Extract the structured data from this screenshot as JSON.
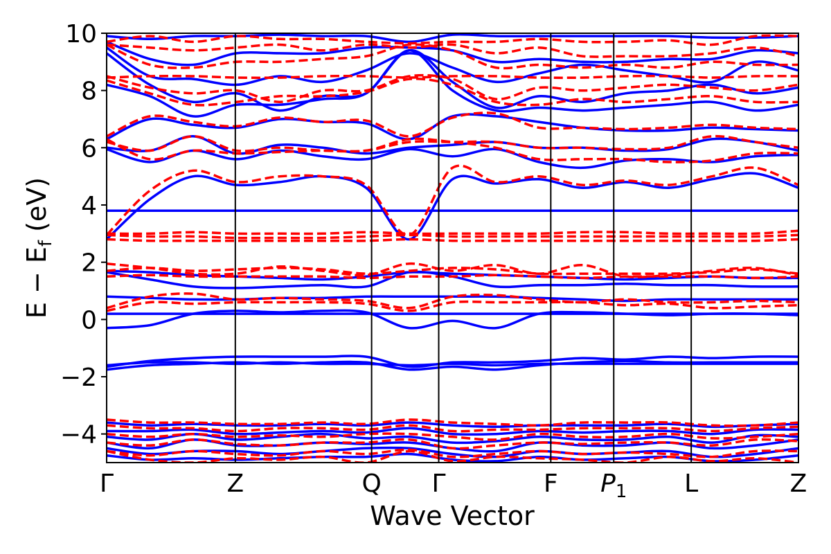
{
  "chart_data": {
    "type": "line",
    "xlabel": "Wave Vector",
    "ylabel": "E − E",
    "ylabel_sub": "f",
    "ylabel_unit": " (eV)",
    "ylim": [
      -5,
      10
    ],
    "yticks": [
      {
        "value": 10,
        "label": "10"
      },
      {
        "value": 8,
        "label": "8"
      },
      {
        "value": 6,
        "label": "6"
      },
      {
        "value": 4,
        "label": "4"
      },
      {
        "value": 2,
        "label": "2"
      },
      {
        "value": 0,
        "label": "0"
      },
      {
        "value": -2,
        "label": "−2"
      },
      {
        "value": -4,
        "label": "−4"
      }
    ],
    "kpoints": [
      {
        "label": "Γ",
        "sub": "",
        "pos": 0.0
      },
      {
        "label": "Z",
        "sub": "",
        "pos": 1.86
      },
      {
        "label": "Q",
        "sub": "",
        "pos": 3.83
      },
      {
        "label": "Γ",
        "sub": "",
        "pos": 4.8
      },
      {
        "label": "F",
        "sub": "",
        "pos": 6.42
      },
      {
        "label": "P",
        "sub": "1",
        "pos": 7.33
      },
      {
        "label": "L",
        "sub": "",
        "pos": 8.45
      },
      {
        "label": "Z",
        "sub": "",
        "pos": 10.0
      }
    ],
    "xlim": [
      0,
      10.0
    ],
    "colors": {
      "solid": "#0000ff",
      "dashed": "#ff0000"
    },
    "series": [
      {
        "style": "solid",
        "values": [
          -0.3,
          -0.2,
          0.2,
          0.3,
          0.25,
          0.3,
          0.25,
          -0.3,
          -0.05,
          -0.3,
          0.2,
          0.25,
          0.2,
          0.15,
          0.2,
          0.2,
          0.15
        ]
      },
      {
        "style": "solid",
        "values": [
          0.2,
          0.2,
          0.2,
          0.2,
          0.2,
          0.2,
          0.2,
          0.2,
          0.2,
          0.2,
          0.2,
          0.2,
          0.2,
          0.2,
          0.2,
          0.2,
          0.2
        ]
      },
      {
        "style": "solid",
        "values": [
          0.8,
          0.75,
          0.7,
          0.7,
          0.75,
          0.75,
          0.8,
          0.8,
          0.8,
          0.8,
          0.75,
          0.7,
          0.65,
          0.7,
          0.7,
          0.7,
          0.7
        ]
      },
      {
        "style": "solid",
        "values": [
          1.65,
          1.4,
          1.15,
          1.1,
          1.15,
          1.2,
          1.15,
          1.65,
          1.5,
          1.15,
          1.2,
          1.2,
          1.25,
          1.2,
          1.2,
          1.15,
          1.15
        ]
      },
      {
        "style": "solid",
        "values": [
          1.7,
          1.65,
          1.55,
          1.5,
          1.45,
          1.4,
          1.5,
          1.65,
          1.6,
          1.55,
          1.5,
          1.45,
          1.4,
          1.45,
          1.5,
          1.45,
          1.45
        ]
      },
      {
        "style": "solid",
        "values": [
          3.8,
          3.8,
          3.8,
          3.8,
          3.8,
          3.8,
          3.8,
          3.8,
          3.8,
          3.8,
          3.8,
          3.8,
          3.8,
          3.8,
          3.8,
          3.8,
          3.8
        ]
      },
      {
        "style": "solid",
        "values": [
          2.8,
          4.2,
          5.0,
          4.7,
          4.8,
          5.0,
          4.6,
          2.8,
          4.9,
          4.75,
          4.9,
          4.6,
          4.8,
          4.6,
          4.9,
          5.1,
          4.6
        ]
      },
      {
        "style": "solid",
        "values": [
          5.95,
          5.5,
          5.9,
          5.6,
          5.9,
          5.7,
          5.6,
          5.95,
          5.7,
          5.95,
          5.5,
          5.3,
          5.55,
          5.6,
          5.5,
          5.7,
          5.75
        ]
      },
      {
        "style": "solid",
        "values": [
          6.0,
          5.9,
          6.4,
          5.8,
          6.1,
          6.0,
          5.8,
          6.0,
          6.1,
          6.2,
          6.0,
          6.0,
          5.9,
          5.95,
          6.3,
          6.2,
          5.9
        ]
      },
      {
        "style": "solid",
        "values": [
          6.3,
          7.0,
          6.8,
          6.7,
          7.0,
          6.9,
          6.85,
          6.3,
          7.1,
          7.1,
          6.9,
          6.7,
          6.6,
          6.6,
          6.7,
          6.65,
          6.6
        ]
      },
      {
        "style": "solid",
        "values": [
          8.2,
          7.8,
          7.1,
          7.5,
          7.5,
          7.7,
          7.9,
          9.4,
          8.0,
          7.3,
          7.4,
          7.3,
          7.4,
          7.5,
          7.6,
          7.3,
          7.5
        ]
      },
      {
        "style": "solid",
        "values": [
          9.3,
          8.2,
          7.6,
          7.9,
          7.3,
          7.8,
          7.9,
          9.4,
          8.3,
          7.4,
          7.8,
          7.6,
          7.9,
          8.0,
          8.2,
          7.9,
          8.1
        ]
      },
      {
        "style": "solid",
        "values": [
          9.5,
          8.5,
          8.4,
          8.2,
          8.5,
          8.3,
          8.7,
          9.3,
          8.8,
          8.3,
          8.6,
          8.9,
          8.7,
          8.5,
          8.3,
          9.0,
          8.7
        ]
      },
      {
        "style": "solid",
        "values": [
          9.7,
          9.1,
          8.9,
          9.3,
          9.3,
          9.3,
          9.5,
          9.5,
          9.4,
          9.0,
          9.1,
          9.0,
          9.0,
          9.1,
          9.1,
          9.4,
          9.3
        ]
      },
      {
        "style": "solid",
        "values": [
          9.9,
          9.8,
          9.9,
          9.9,
          9.95,
          9.9,
          9.9,
          9.7,
          9.95,
          9.9,
          9.9,
          9.9,
          9.9,
          9.9,
          9.85,
          9.85,
          9.9
        ]
      },
      {
        "style": "solid",
        "values": [
          -1.75,
          -1.6,
          -1.55,
          -1.5,
          -1.55,
          -1.5,
          -1.5,
          -1.75,
          -1.65,
          -1.75,
          -1.6,
          -1.5,
          -1.45,
          -1.5,
          -1.5,
          -1.5,
          -1.5
        ]
      },
      {
        "style": "solid",
        "values": [
          -1.6,
          -1.5,
          -1.5,
          -1.55,
          -1.5,
          -1.55,
          -1.55,
          -1.6,
          -1.55,
          -1.6,
          -1.55,
          -1.55,
          -1.55,
          -1.55,
          -1.55,
          -1.55,
          -1.55
        ]
      },
      {
        "style": "solid",
        "values": [
          -1.65,
          -1.45,
          -1.35,
          -1.3,
          -1.3,
          -1.3,
          -1.3,
          -1.65,
          -1.5,
          -1.5,
          -1.45,
          -1.35,
          -1.4,
          -1.3,
          -1.35,
          -1.3,
          -1.3
        ]
      },
      {
        "style": "solid",
        "values": [
          -3.6,
          -3.7,
          -3.65,
          -3.7,
          -3.7,
          -3.65,
          -3.7,
          -3.6,
          -3.7,
          -3.75,
          -3.7,
          -3.7,
          -3.7,
          -3.65,
          -3.75,
          -3.7,
          -3.65
        ]
      },
      {
        "style": "solid",
        "values": [
          -3.9,
          -3.9,
          -3.85,
          -4.0,
          -3.95,
          -3.9,
          -3.95,
          -3.8,
          -4.0,
          -4.0,
          -3.9,
          -3.95,
          -3.9,
          -3.9,
          -4.0,
          -3.85,
          -3.85
        ]
      },
      {
        "style": "solid",
        "values": [
          -4.1,
          -4.2,
          -4.0,
          -4.2,
          -4.1,
          -4.0,
          -4.15,
          -4.1,
          -4.3,
          -4.25,
          -4.1,
          -4.2,
          -4.2,
          -4.1,
          -4.3,
          -4.05,
          -4.1
        ]
      },
      {
        "style": "solid",
        "values": [
          -4.3,
          -4.5,
          -4.2,
          -4.4,
          -4.4,
          -4.3,
          -4.35,
          -4.3,
          -4.5,
          -4.6,
          -4.3,
          -4.4,
          -4.4,
          -4.3,
          -4.5,
          -4.4,
          -4.2
        ]
      },
      {
        "style": "solid",
        "values": [
          -4.5,
          -4.7,
          -4.6,
          -4.6,
          -4.7,
          -4.6,
          -4.5,
          -4.5,
          -4.7,
          -4.8,
          -4.6,
          -4.7,
          -4.65,
          -4.6,
          -4.8,
          -4.7,
          -4.5
        ]
      },
      {
        "style": "solid",
        "values": [
          -4.75,
          -4.9,
          -4.85,
          -4.9,
          -4.85,
          -4.8,
          -4.8,
          -4.7,
          -4.9,
          -4.95,
          -4.8,
          -4.9,
          -4.85,
          -4.8,
          -4.95,
          -4.9,
          -4.75
        ]
      },
      {
        "style": "dashed",
        "values": [
          0.3,
          0.6,
          0.55,
          0.6,
          0.6,
          0.6,
          0.55,
          0.3,
          0.6,
          0.6,
          0.6,
          0.6,
          0.5,
          0.55,
          0.4,
          0.45,
          0.5
        ]
      },
      {
        "style": "dashed",
        "values": [
          0.4,
          0.8,
          0.9,
          0.7,
          0.75,
          0.7,
          0.65,
          0.4,
          0.8,
          0.85,
          0.7,
          0.6,
          0.7,
          0.6,
          0.6,
          0.65,
          0.6
        ]
      },
      {
        "style": "dashed",
        "values": [
          1.7,
          1.8,
          1.7,
          1.75,
          1.8,
          1.75,
          1.6,
          1.7,
          1.8,
          1.75,
          1.6,
          1.6,
          1.6,
          1.6,
          1.65,
          1.75,
          1.6
        ]
      },
      {
        "style": "dashed",
        "values": [
          1.95,
          1.8,
          1.6,
          1.6,
          1.85,
          1.7,
          1.55,
          1.95,
          1.7,
          1.9,
          1.6,
          1.9,
          1.5,
          1.55,
          1.7,
          1.8,
          1.55
        ]
      },
      {
        "style": "dashed",
        "values": [
          1.5,
          1.55,
          1.5,
          1.5,
          1.5,
          1.5,
          1.45,
          1.5,
          1.5,
          1.55,
          1.5,
          1.45,
          1.5,
          1.5,
          1.5,
          1.45,
          1.5
        ]
      },
      {
        "style": "dashed",
        "values": [
          2.8,
          2.75,
          2.75,
          2.75,
          2.75,
          2.75,
          2.75,
          2.8,
          2.75,
          2.75,
          2.75,
          2.75,
          2.75,
          2.75,
          2.75,
          2.75,
          2.8
        ]
      },
      {
        "style": "dashed",
        "values": [
          2.95,
          2.9,
          2.9,
          2.85,
          2.85,
          2.85,
          2.9,
          2.95,
          2.9,
          2.9,
          2.9,
          2.9,
          2.9,
          2.9,
          2.9,
          2.9,
          2.95
        ]
      },
      {
        "style": "dashed",
        "values": [
          3.0,
          3.0,
          3.05,
          3.0,
          3.0,
          3.0,
          3.05,
          3.0,
          3.0,
          3.0,
          3.0,
          3.05,
          3.05,
          3.0,
          3.0,
          3.0,
          3.1
        ]
      },
      {
        "style": "dashed",
        "values": [
          2.95,
          4.5,
          5.2,
          4.8,
          5.0,
          5.0,
          4.7,
          2.95,
          5.3,
          4.8,
          5.0,
          4.7,
          4.85,
          4.7,
          5.0,
          5.3,
          4.7
        ]
      },
      {
        "style": "dashed",
        "values": [
          6.2,
          5.9,
          6.4,
          5.9,
          6.0,
          5.9,
          5.9,
          6.2,
          6.2,
          6.2,
          6.0,
          6.0,
          5.95,
          6.0,
          6.4,
          6.2,
          6.0
        ]
      },
      {
        "style": "dashed",
        "values": [
          6.3,
          5.6,
          5.9,
          5.8,
          5.85,
          5.9,
          5.9,
          6.3,
          6.2,
          6.0,
          5.6,
          5.6,
          5.6,
          5.5,
          5.55,
          5.8,
          5.8
        ]
      },
      {
        "style": "dashed",
        "values": [
          6.4,
          7.1,
          6.9,
          6.75,
          7.05,
          6.9,
          6.95,
          6.4,
          7.05,
          7.2,
          6.7,
          6.7,
          6.65,
          6.7,
          6.8,
          6.7,
          6.65
        ]
      },
      {
        "style": "dashed",
        "values": [
          8.35,
          7.9,
          7.5,
          7.6,
          7.8,
          7.8,
          7.95,
          8.4,
          8.2,
          7.6,
          7.5,
          7.7,
          7.6,
          7.7,
          7.8,
          7.6,
          7.6
        ]
      },
      {
        "style": "dashed",
        "values": [
          8.45,
          8.5,
          8.5,
          8.45,
          8.45,
          8.5,
          8.5,
          8.45,
          8.5,
          8.5,
          8.45,
          8.45,
          8.5,
          8.5,
          8.45,
          8.5,
          8.5
        ]
      },
      {
        "style": "dashed",
        "values": [
          8.5,
          8.1,
          7.9,
          8.0,
          7.6,
          8.0,
          8.0,
          8.5,
          8.4,
          7.7,
          8.1,
          8.0,
          8.1,
          8.2,
          8.1,
          8.0,
          8.2
        ]
      },
      {
        "style": "dashed",
        "values": [
          9.6,
          8.9,
          8.8,
          9.0,
          9.0,
          9.1,
          9.2,
          9.6,
          9.4,
          8.8,
          8.9,
          8.8,
          8.9,
          8.8,
          9.0,
          8.9,
          8.9
        ]
      },
      {
        "style": "dashed",
        "values": [
          9.6,
          9.5,
          9.4,
          9.5,
          9.6,
          9.4,
          9.6,
          9.5,
          9.6,
          9.3,
          9.5,
          9.2,
          9.2,
          9.2,
          9.3,
          9.5,
          9.2
        ]
      },
      {
        "style": "dashed",
        "values": [
          9.7,
          9.9,
          9.7,
          9.9,
          9.8,
          9.8,
          9.7,
          9.65,
          9.7,
          9.7,
          9.8,
          9.7,
          9.7,
          9.75,
          9.6,
          9.9,
          9.9
        ]
      },
      {
        "style": "dashed",
        "values": [
          -3.5,
          -3.6,
          -3.6,
          -3.65,
          -3.65,
          -3.6,
          -3.65,
          -3.5,
          -3.6,
          -3.65,
          -3.7,
          -3.6,
          -3.6,
          -3.6,
          -3.7,
          -3.7,
          -3.6
        ]
      },
      {
        "style": "dashed",
        "values": [
          -3.7,
          -3.8,
          -3.8,
          -3.9,
          -3.8,
          -3.8,
          -3.85,
          -3.7,
          -3.9,
          -3.85,
          -3.85,
          -3.8,
          -3.8,
          -3.8,
          -3.9,
          -3.8,
          -3.75
        ]
      },
      {
        "style": "dashed",
        "values": [
          -4.0,
          -4.1,
          -4.0,
          -4.1,
          -4.05,
          -4.1,
          -4.0,
          -4.0,
          -4.1,
          -4.2,
          -4.0,
          -4.1,
          -4.1,
          -4.0,
          -4.15,
          -4.1,
          -4.0
        ]
      },
      {
        "style": "dashed",
        "values": [
          -4.3,
          -4.4,
          -4.2,
          -4.35,
          -4.4,
          -4.3,
          -4.3,
          -4.2,
          -4.5,
          -4.4,
          -4.3,
          -4.35,
          -4.3,
          -4.3,
          -4.4,
          -4.2,
          -4.25
        ]
      },
      {
        "style": "dashed",
        "values": [
          -4.6,
          -4.75,
          -4.6,
          -4.7,
          -4.75,
          -4.6,
          -4.7,
          -4.55,
          -4.8,
          -4.7,
          -4.6,
          -4.7,
          -4.65,
          -4.7,
          -4.8,
          -4.6,
          -4.6
        ]
      },
      {
        "style": "dashed",
        "values": [
          -4.6,
          -4.9,
          -5.0,
          -4.85,
          -4.9,
          -4.8,
          -5.0,
          -4.6,
          -4.95,
          -4.8,
          -4.85,
          -4.9,
          -5.0,
          -4.8,
          -4.95,
          -4.85,
          -5.0
        ]
      }
    ]
  }
}
